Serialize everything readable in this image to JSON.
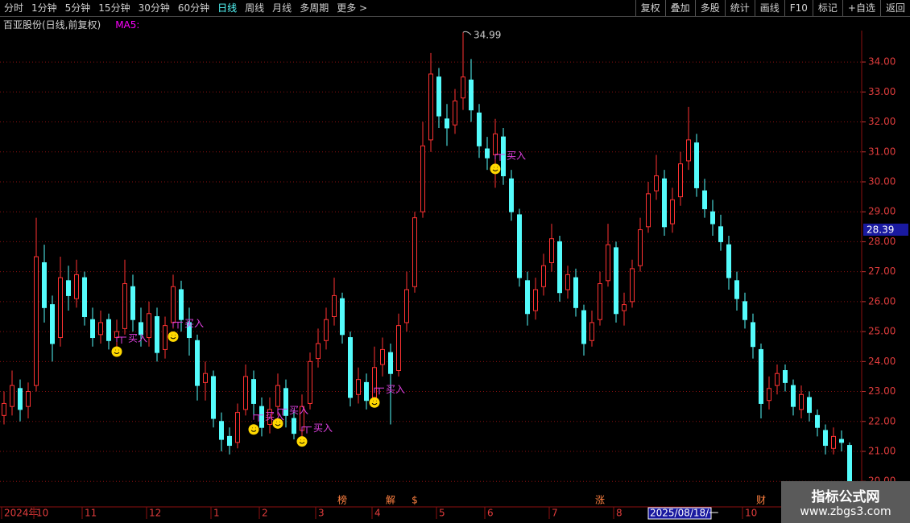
{
  "toolbar": {
    "left": [
      "分时",
      "1分钟",
      "5分钟",
      "15分钟",
      "30分钟",
      "60分钟",
      "日线",
      "周线",
      "月线",
      "多周期",
      "更多 >"
    ],
    "active": "日线",
    "right": [
      "复权",
      "叠加",
      "多股",
      "统计",
      "画线",
      "F10",
      "标记",
      "+自选",
      "返回"
    ]
  },
  "header": {
    "title": "百亚股份(日线,前复权)",
    "indicator": "MA5:"
  },
  "watermark": {
    "name": "指标公式网",
    "url": "www.zbgs3.com"
  },
  "chart_data": {
    "type": "candlestick",
    "up_color": "#ff3232",
    "down_color": "#54fcfc",
    "grid": true,
    "grid_color": "#8b1010",
    "open": [
      22.2,
      22.5,
      23.1,
      22.5,
      23.2,
      27.3,
      25.9,
      24.8,
      26.7,
      26.1,
      26.8,
      25.4,
      24.9,
      25.4,
      24.8,
      25.1,
      26.5,
      25.3,
      24.8,
      25.5,
      24.4,
      25.3,
      26.4,
      25.3,
      24.7,
      23.3,
      23.5,
      22.0,
      21.5,
      21.3,
      22.4,
      23.4,
      22.5,
      21.9,
      22.5,
      23.1,
      22.1,
      21.7,
      22.6,
      24.1,
      24.7,
      25.5,
      26.1,
      24.8,
      22.9,
      23.3,
      22.8,
      23.9,
      24.3,
      23.7,
      25.3,
      26.5,
      29.0,
      31.4,
      33.5,
      32.1,
      31.9,
      32.8,
      33.4,
      32.3,
      31.1,
      30.9,
      31.5,
      30.1,
      28.9,
      26.7,
      25.7,
      26.5,
      27.3,
      28.0,
      26.4,
      26.8,
      25.7,
      24.7,
      25.4,
      26.7,
      27.8,
      25.7,
      26.0,
      27.2,
      28.5,
      29.7,
      30.1,
      28.6,
      29.5,
      30.7,
      31.3,
      29.7,
      29.0,
      28.5,
      27.9,
      26.7,
      26.0,
      25.3,
      24.4,
      22.7,
      23.2,
      23.7,
      23.2,
      22.4,
      22.8,
      22.2,
      21.7,
      21.1,
      21.4,
      21.2
    ],
    "high": [
      23.0,
      23.7,
      23.4,
      23.3,
      28.8,
      27.9,
      26.2,
      27.5,
      27.2,
      27.4,
      27.0,
      25.8,
      25.7,
      25.6,
      25.4,
      27.4,
      26.9,
      25.8,
      26.0,
      25.8,
      25.5,
      26.9,
      26.7,
      25.8,
      24.9,
      24.0,
      23.7,
      22.3,
      21.8,
      22.6,
      23.9,
      23.7,
      22.8,
      22.8,
      23.6,
      23.4,
      22.4,
      22.9,
      24.3,
      25.1,
      25.8,
      26.8,
      26.3,
      25.0,
      23.8,
      23.6,
      24.5,
      24.8,
      24.6,
      25.6,
      27.0,
      29.0,
      32.0,
      34.3,
      33.8,
      32.6,
      33.1,
      34.99,
      34.1,
      32.6,
      31.5,
      32.1,
      31.8,
      30.4,
      29.1,
      27.0,
      26.8,
      27.6,
      28.6,
      28.2,
      27.2,
      27.1,
      25.9,
      25.7,
      27.0,
      28.6,
      28.0,
      26.3,
      27.4,
      28.8,
      30.0,
      30.9,
      30.4,
      29.8,
      31.0,
      32.5,
      31.6,
      30.1,
      29.4,
      28.9,
      28.2,
      27.0,
      26.3,
      25.6,
      24.6,
      23.5,
      23.9,
      23.9,
      23.4,
      23.2,
      23.0,
      22.4,
      21.9,
      21.8,
      21.7,
      21.3
    ],
    "low": [
      21.9,
      22.2,
      22.0,
      22.1,
      23.0,
      25.3,
      24.0,
      24.5,
      25.7,
      25.8,
      25.2,
      24.5,
      24.6,
      24.4,
      24.5,
      24.9,
      25.0,
      24.5,
      24.5,
      24.0,
      24.1,
      25.1,
      25.0,
      24.2,
      22.7,
      22.7,
      21.8,
      21.0,
      20.9,
      21.1,
      22.2,
      22.2,
      21.5,
      21.6,
      22.2,
      21.8,
      21.4,
      21.5,
      22.4,
      23.8,
      24.4,
      25.2,
      24.6,
      22.5,
      22.6,
      22.4,
      22.6,
      23.5,
      21.9,
      23.5,
      25.0,
      26.3,
      28.8,
      31.0,
      31.8,
      31.2,
      31.6,
      32.4,
      32.0,
      30.8,
      30.4,
      29.8,
      29.9,
      28.7,
      26.5,
      25.2,
      25.4,
      26.2,
      27.0,
      26.0,
      26.1,
      25.5,
      24.2,
      24.5,
      25.2,
      26.5,
      25.3,
      25.2,
      25.8,
      27.0,
      28.3,
      29.4,
      28.2,
      28.3,
      29.2,
      30.4,
      29.5,
      28.8,
      28.2,
      27.7,
      26.4,
      25.7,
      25.1,
      24.1,
      22.1,
      22.4,
      22.9,
      23.0,
      22.2,
      22.1,
      22.0,
      21.5,
      20.9,
      20.9,
      21.0,
      19.9
    ],
    "close": [
      22.6,
      23.2,
      22.4,
      23.0,
      27.5,
      25.8,
      24.6,
      26.8,
      26.2,
      26.9,
      25.5,
      24.8,
      25.3,
      24.7,
      25.0,
      26.6,
      25.4,
      24.9,
      25.6,
      24.3,
      25.2,
      26.5,
      25.4,
      24.8,
      23.2,
      23.6,
      22.1,
      21.4,
      21.2,
      22.3,
      23.5,
      22.6,
      21.8,
      22.4,
      23.2,
      22.2,
      21.6,
      22.5,
      24.0,
      24.6,
      25.4,
      26.2,
      24.9,
      22.8,
      23.4,
      22.7,
      23.8,
      24.4,
      23.6,
      25.2,
      26.4,
      28.8,
      31.2,
      33.6,
      32.2,
      31.8,
      32.7,
      33.5,
      32.4,
      31.2,
      30.8,
      31.6,
      30.2,
      29.0,
      26.8,
      25.6,
      26.4,
      27.2,
      28.1,
      26.3,
      26.9,
      25.8,
      24.6,
      25.3,
      26.6,
      27.9,
      25.6,
      25.9,
      27.1,
      28.4,
      29.6,
      30.2,
      28.5,
      29.4,
      30.6,
      31.4,
      29.8,
      29.1,
      28.6,
      28.0,
      26.8,
      26.1,
      25.4,
      24.5,
      22.6,
      23.1,
      23.6,
      23.3,
      22.5,
      22.9,
      22.3,
      21.8,
      21.2,
      21.5,
      21.3,
      20.0
    ],
    "ylim": [
      19.2,
      35.05
    ],
    "yticks": [
      {
        "value": 20,
        "label": "20.00"
      },
      {
        "value": 21,
        "label": "21.00"
      },
      {
        "value": 22,
        "label": "22.00"
      },
      {
        "value": 23,
        "label": "23.00"
      },
      {
        "value": 24,
        "label": "24.00"
      },
      {
        "value": 25,
        "label": "25.00"
      },
      {
        "value": 26,
        "label": "26.00"
      },
      {
        "value": 27,
        "label": "27.00"
      },
      {
        "value": 28,
        "label": "28.00"
      },
      {
        "value": 29,
        "label": "29.00"
      },
      {
        "value": 30,
        "label": "30.00"
      },
      {
        "value": 31,
        "label": "31.00"
      },
      {
        "value": 32,
        "label": "32.00"
      },
      {
        "value": 33,
        "label": "33.00"
      },
      {
        "value": 34,
        "label": "34.00"
      }
    ],
    "xticks": [
      {
        "value": 0,
        "label": "2024年"
      },
      {
        "value": 4,
        "label": "10"
      },
      {
        "value": 10,
        "label": "11"
      },
      {
        "value": 18,
        "label": "12"
      },
      {
        "value": 26,
        "label": "1"
      },
      {
        "value": 32,
        "label": "2"
      },
      {
        "value": 39,
        "label": "3"
      },
      {
        "value": 46,
        "label": "4"
      },
      {
        "value": 54,
        "label": "5"
      },
      {
        "value": 60,
        "label": "6"
      },
      {
        "value": 68,
        "label": "7"
      },
      {
        "value": 76,
        "label": "8"
      },
      {
        "value": 92,
        "label": "10"
      }
    ],
    "cursor_date": "2025/08/18/一",
    "cursor_price": 28.39,
    "max_index": 57,
    "buy_signals": [
      {
        "index": 14,
        "price": 24.6,
        "label": "买入"
      },
      {
        "index": 21,
        "price": 25.1,
        "label": "买入"
      },
      {
        "index": 31,
        "price": 22.0,
        "label": "买入"
      },
      {
        "index": 34,
        "price": 22.2,
        "label": "买入"
      },
      {
        "index": 37,
        "price": 21.6,
        "label": "买入"
      },
      {
        "index": 46,
        "price": 22.9,
        "label": "买入"
      },
      {
        "index": 61,
        "price": 30.7,
        "label": "买入"
      }
    ],
    "events": [
      {
        "index": 42,
        "label": "榜"
      },
      {
        "index": 48,
        "label": "解"
      },
      {
        "index": 51,
        "label": "$"
      },
      {
        "index": 74,
        "label": "涨"
      },
      {
        "index": 94,
        "label": "财"
      }
    ]
  }
}
